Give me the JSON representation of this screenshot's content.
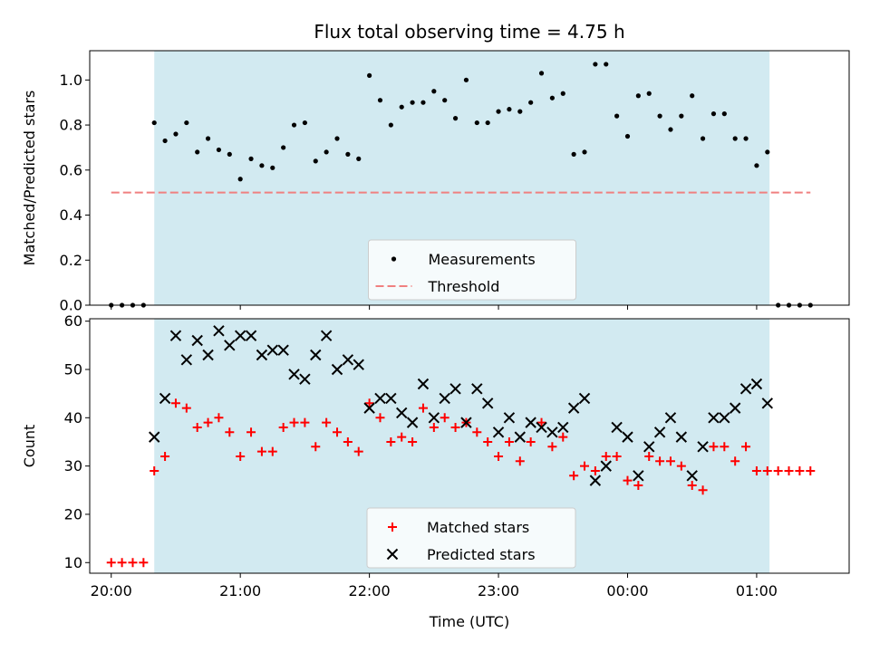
{
  "chart_data": [
    {
      "type": "scatter",
      "title": "Flux total observing time = 4.75 h",
      "xlabel": "",
      "ylabel": "Matched/Predicted stars",
      "xlim": [
        "19:50",
        "01:43"
      ],
      "ylim": [
        0,
        1.13
      ],
      "yticks": [
        "0.0",
        "0.2",
        "0.4",
        "0.6",
        "0.8",
        "1.0"
      ],
      "shaded_region": [
        "20:20",
        "01:06"
      ],
      "shaded_color": "#add8e6",
      "legend_position": "lower center",
      "series": [
        {
          "name": "Measurements",
          "marker": "dot",
          "color": "#000000",
          "x": [
            "20:00",
            "20:05",
            "20:10",
            "20:15",
            "20:20",
            "20:25",
            "20:30",
            "20:35",
            "20:40",
            "20:45",
            "20:50",
            "20:55",
            "21:00",
            "21:05",
            "21:10",
            "21:15",
            "21:20",
            "21:25",
            "21:30",
            "21:35",
            "21:40",
            "21:45",
            "21:50",
            "21:55",
            "22:00",
            "22:05",
            "22:10",
            "22:15",
            "22:20",
            "22:25",
            "22:30",
            "22:35",
            "22:40",
            "22:45",
            "22:50",
            "22:55",
            "23:00",
            "23:05",
            "23:10",
            "23:15",
            "23:20",
            "23:25",
            "23:30",
            "23:35",
            "23:40",
            "23:45",
            "23:50",
            "23:55",
            "00:00",
            "00:05",
            "00:10",
            "00:15",
            "00:20",
            "00:25",
            "00:30",
            "00:35",
            "00:40",
            "00:45",
            "00:50",
            "00:55",
            "01:00",
            "01:05",
            "01:10",
            "01:15",
            "01:20",
            "01:25"
          ],
          "y": [
            0.0,
            0.0,
            0.0,
            0.0,
            0.81,
            0.73,
            0.76,
            0.81,
            0.68,
            0.74,
            0.69,
            0.67,
            0.56,
            0.65,
            0.62,
            0.61,
            0.7,
            0.8,
            0.81,
            0.64,
            0.68,
            0.74,
            0.67,
            0.65,
            1.02,
            0.91,
            0.8,
            0.88,
            0.9,
            0.9,
            0.95,
            0.91,
            0.83,
            1.0,
            0.81,
            0.81,
            0.86,
            0.87,
            0.86,
            0.9,
            1.03,
            0.92,
            0.94,
            0.67,
            0.68,
            1.07,
            1.07,
            0.84,
            0.75,
            0.93,
            0.94,
            0.84,
            0.78,
            0.84,
            0.93,
            0.74,
            0.85,
            0.85,
            0.74,
            0.74,
            0.62,
            0.68,
            0.0,
            0.0,
            0.0,
            0.0
          ]
        },
        {
          "name": "Threshold",
          "marker": "dashed-line",
          "color": "#f08080",
          "x": [
            "20:00",
            "01:25"
          ],
          "y": [
            0.5,
            0.5
          ]
        }
      ]
    },
    {
      "type": "scatter",
      "title": "",
      "xlabel": "Time (UTC)",
      "ylabel": "Count",
      "xlim": [
        "19:50",
        "01:43"
      ],
      "ylim": [
        7.8,
        60.5
      ],
      "yticks": [
        "10",
        "20",
        "30",
        "40",
        "50",
        "60"
      ],
      "xticks": [
        "20:00",
        "21:00",
        "22:00",
        "23:00",
        "00:00",
        "01:00"
      ],
      "shaded_region": [
        "20:20",
        "01:06"
      ],
      "shaded_color": "#add8e6",
      "legend_position": "lower center",
      "series": [
        {
          "name": "Matched stars",
          "marker": "plus",
          "color": "#ff0000",
          "x": [
            "20:00",
            "20:05",
            "20:10",
            "20:15",
            "20:20",
            "20:25",
            "20:30",
            "20:35",
            "20:40",
            "20:45",
            "20:50",
            "20:55",
            "21:00",
            "21:05",
            "21:10",
            "21:15",
            "21:20",
            "21:25",
            "21:30",
            "21:35",
            "21:40",
            "21:45",
            "21:50",
            "21:55",
            "22:00",
            "22:05",
            "22:10",
            "22:15",
            "22:20",
            "22:25",
            "22:30",
            "22:35",
            "22:40",
            "22:45",
            "22:50",
            "22:55",
            "23:00",
            "23:05",
            "23:10",
            "23:15",
            "23:20",
            "23:25",
            "23:30",
            "23:35",
            "23:40",
            "23:45",
            "23:50",
            "23:55",
            "00:00",
            "00:05",
            "00:10",
            "00:15",
            "00:20",
            "00:25",
            "00:30",
            "00:35",
            "00:40",
            "00:45",
            "00:50",
            "00:55",
            "01:00",
            "01:05",
            "01:10",
            "01:15",
            "01:20",
            "01:25"
          ],
          "y": [
            10,
            10,
            10,
            10,
            29,
            32,
            43,
            42,
            38,
            39,
            40,
            37,
            32,
            37,
            33,
            33,
            38,
            39,
            39,
            34,
            39,
            37,
            35,
            33,
            43,
            40,
            35,
            36,
            35,
            42,
            38,
            40,
            38,
            39,
            37,
            35,
            32,
            35,
            31,
            35,
            39,
            34,
            36,
            28,
            30,
            29,
            32,
            32,
            27,
            26,
            32,
            31,
            31,
            30,
            26,
            25,
            34,
            34,
            31,
            34,
            29,
            29,
            29,
            29,
            29,
            29
          ]
        },
        {
          "name": "Predicted stars",
          "marker": "x",
          "color": "#000000",
          "x": [
            "20:20",
            "20:25",
            "20:30",
            "20:35",
            "20:40",
            "20:45",
            "20:50",
            "20:55",
            "21:00",
            "21:05",
            "21:10",
            "21:15",
            "21:20",
            "21:25",
            "21:30",
            "21:35",
            "21:40",
            "21:45",
            "21:50",
            "21:55",
            "22:00",
            "22:05",
            "22:10",
            "22:15",
            "22:20",
            "22:25",
            "22:30",
            "22:35",
            "22:40",
            "22:45",
            "22:50",
            "22:55",
            "23:00",
            "23:05",
            "23:10",
            "23:15",
            "23:20",
            "23:25",
            "23:30",
            "23:35",
            "23:40",
            "23:45",
            "23:50",
            "23:55",
            "00:00",
            "00:05",
            "00:10",
            "00:15",
            "00:20",
            "00:25",
            "00:30",
            "00:35",
            "00:40",
            "00:45",
            "00:50",
            "00:55",
            "01:00",
            "01:05"
          ],
          "y": [
            36,
            44,
            57,
            52,
            56,
            53,
            58,
            55,
            57,
            57,
            53,
            54,
            54,
            49,
            48,
            53,
            57,
            50,
            52,
            51,
            42,
            44,
            44,
            41,
            39,
            47,
            40,
            44,
            46,
            39,
            46,
            43,
            37,
            40,
            36,
            39,
            38,
            37,
            38,
            42,
            44,
            27,
            30,
            38,
            36,
            28,
            34,
            37,
            40,
            36,
            28,
            34,
            40,
            40,
            42,
            46,
            47,
            43
          ]
        }
      ]
    }
  ]
}
